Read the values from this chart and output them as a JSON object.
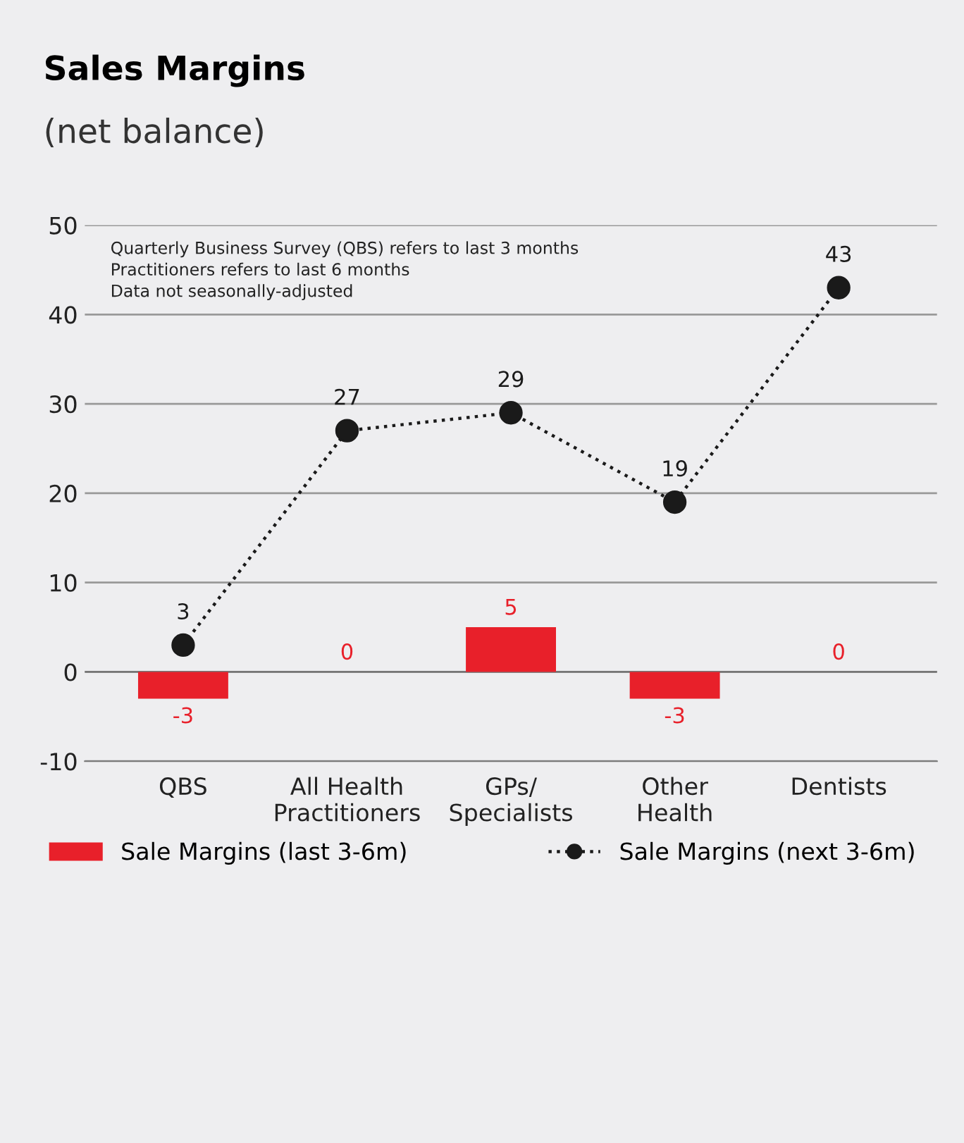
{
  "chart_data": {
    "type": "bar",
    "title": "Sales Margins",
    "subtitle": "(net balance)",
    "categories": [
      "QBS",
      "All Health\nPractitioners",
      "GPs/\nSpecialists",
      "Other\nHealth",
      "Dentists"
    ],
    "series": [
      {
        "name": "Sale Margins (last 3-6m)",
        "color": "#e8202a",
        "values": [
          -3,
          0,
          5,
          -3,
          0
        ]
      },
      {
        "name": "Sale Margins (next 3-6m)",
        "type": "line",
        "color": "#1a1a1a",
        "values": [
          3,
          27,
          29,
          19,
          43
        ],
        "marker": "circle",
        "line_style": "dotted"
      }
    ],
    "ylim": [
      -10,
      50
    ],
    "yticks": [
      -10,
      0,
      10,
      20,
      30,
      40,
      50
    ],
    "grid": "y",
    "legend": "bottom",
    "data_labels": true,
    "annotations": [
      "Quarterly Business Survey (QBS) refers to last 3 months",
      "Practitioners refers to last 6 months",
      "Data not seasonally-adjusted"
    ]
  }
}
